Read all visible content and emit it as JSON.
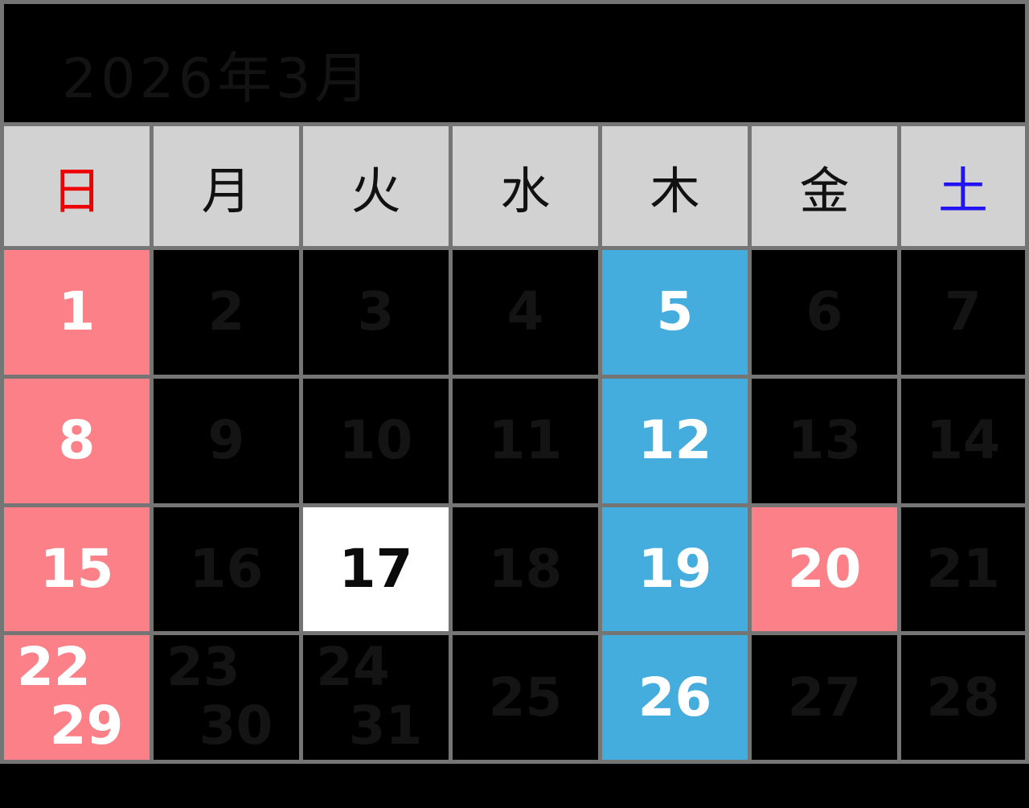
{
  "title": "2026年3月",
  "weekdays": [
    {
      "label": "日",
      "color": "#ee0000"
    },
    {
      "label": "月",
      "color": "#111111"
    },
    {
      "label": "火",
      "color": "#111111"
    },
    {
      "label": "水",
      "color": "#111111"
    },
    {
      "label": "木",
      "color": "#111111"
    },
    {
      "label": "金",
      "color": "#111111"
    },
    {
      "label": "土",
      "color": "#2213f2"
    }
  ],
  "weeks": [
    {
      "cells": [
        {
          "days": [
            "1"
          ],
          "type": "holiday"
        },
        {
          "days": [
            "2"
          ],
          "type": "normal"
        },
        {
          "days": [
            "3"
          ],
          "type": "normal"
        },
        {
          "days": [
            "4"
          ],
          "type": "normal"
        },
        {
          "days": [
            "5"
          ],
          "type": "highlight"
        },
        {
          "days": [
            "6"
          ],
          "type": "normal"
        },
        {
          "days": [
            "7"
          ],
          "type": "normal"
        }
      ]
    },
    {
      "cells": [
        {
          "days": [
            "8"
          ],
          "type": "holiday"
        },
        {
          "days": [
            "9"
          ],
          "type": "normal"
        },
        {
          "days": [
            "10"
          ],
          "type": "normal"
        },
        {
          "days": [
            "11"
          ],
          "type": "normal"
        },
        {
          "days": [
            "12"
          ],
          "type": "highlight"
        },
        {
          "days": [
            "13"
          ],
          "type": "normal"
        },
        {
          "days": [
            "14"
          ],
          "type": "normal"
        }
      ]
    },
    {
      "cells": [
        {
          "days": [
            "15"
          ],
          "type": "holiday"
        },
        {
          "days": [
            "16"
          ],
          "type": "normal"
        },
        {
          "days": [
            "17"
          ],
          "type": "selected"
        },
        {
          "days": [
            "18"
          ],
          "type": "normal"
        },
        {
          "days": [
            "19"
          ],
          "type": "highlight"
        },
        {
          "days": [
            "20"
          ],
          "type": "holiday"
        },
        {
          "days": [
            "21"
          ],
          "type": "normal"
        }
      ]
    },
    {
      "cells": [
        {
          "days": [
            "22",
            "29"
          ],
          "type": "holiday"
        },
        {
          "days": [
            "23",
            "30"
          ],
          "type": "normal"
        },
        {
          "days": [
            "24",
            "31"
          ],
          "type": "normal"
        },
        {
          "days": [
            "25"
          ],
          "type": "normal"
        },
        {
          "days": [
            "26"
          ],
          "type": "highlight"
        },
        {
          "days": [
            "27"
          ],
          "type": "normal"
        },
        {
          "days": [
            "28"
          ],
          "type": "normal"
        }
      ]
    }
  ],
  "colors": {
    "holiday_pink": "#fb8088",
    "highlight_blue": "#45adde",
    "selected_white": "#ffffff",
    "cell_black": "#000000",
    "weekday_header_bg": "#d2d2d2",
    "grid_border_gray": "#757575",
    "sunday_red": "#ee0000",
    "saturday_blue": "#2213f2"
  }
}
